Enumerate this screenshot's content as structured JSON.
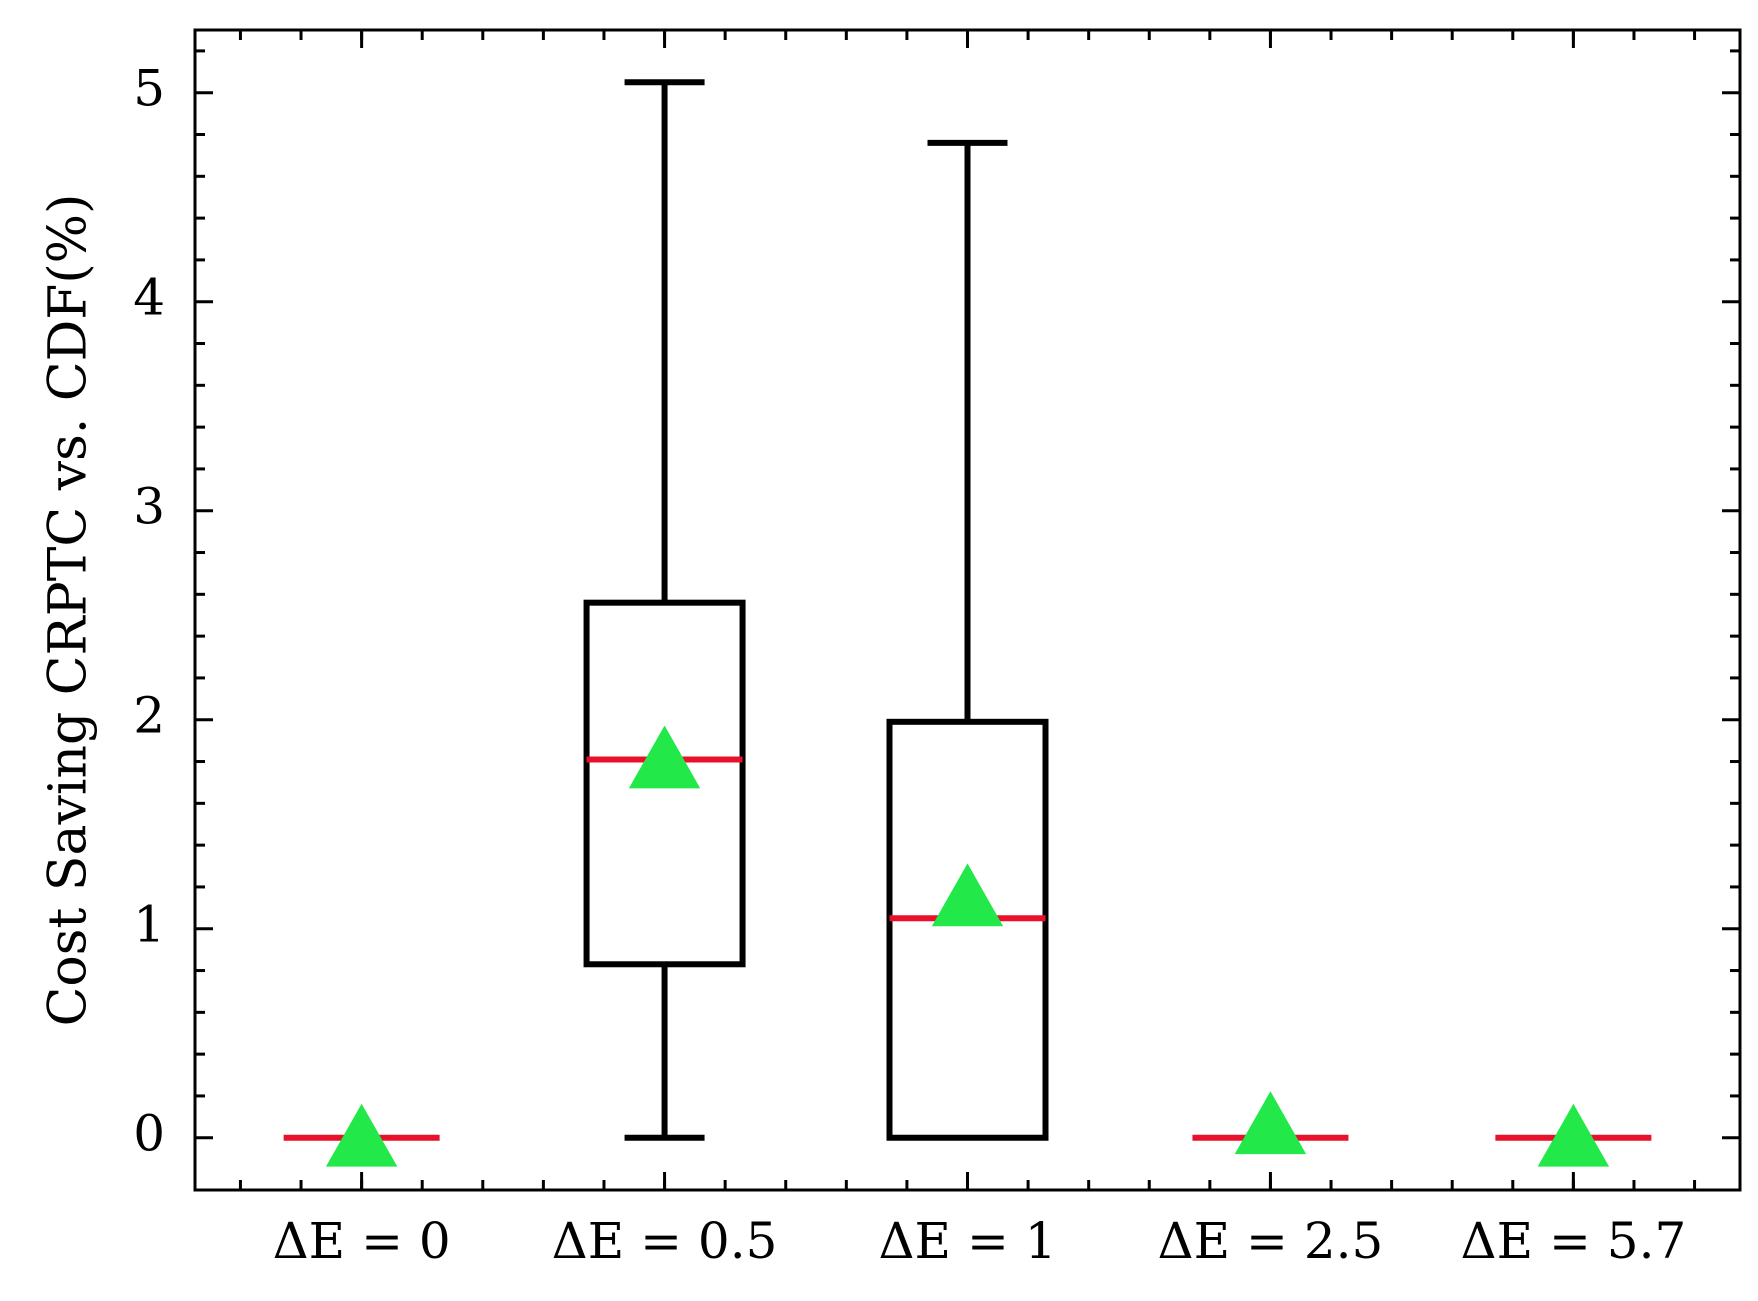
{
  "chart_data": {
    "type": "box",
    "title": "",
    "xlabel": "",
    "ylabel": "Cost Saving CRPTC vs.  CDF(%)",
    "ylim": [
      -0.25,
      5.3
    ],
    "yticks": [
      0,
      1,
      2,
      3,
      4,
      5
    ],
    "ytick_labels": [
      "0",
      "1",
      "2",
      "3",
      "4",
      "5"
    ],
    "categories": [
      "ΔE = 0",
      "ΔE = 0.5",
      "ΔE = 1",
      "ΔE = 2.5",
      "ΔE = 5.7"
    ],
    "boxes": [
      {
        "whisker_low": 0,
        "q1": 0,
        "median": 0,
        "q3": 0,
        "whisker_high": 0,
        "mean": 0
      },
      {
        "whisker_low": 0,
        "q1": 0.83,
        "median": 1.81,
        "q3": 2.56,
        "whisker_high": 5.05,
        "mean": 1.81
      },
      {
        "whisker_low": 0,
        "q1": 0,
        "median": 1.05,
        "q3": 1.99,
        "whisker_high": 4.76,
        "mean": 1.15
      },
      {
        "whisker_low": 0,
        "q1": 0,
        "median": 0,
        "q3": 0,
        "whisker_high": 0,
        "mean": 0.06
      },
      {
        "whisker_low": 0,
        "q1": 0,
        "median": 0,
        "q3": 0,
        "whisker_high": 0,
        "mean": 0
      }
    ],
    "grid": false,
    "colors": {
      "box": "#000000",
      "median": "#e8102a",
      "mean": "#22e84a"
    }
  }
}
